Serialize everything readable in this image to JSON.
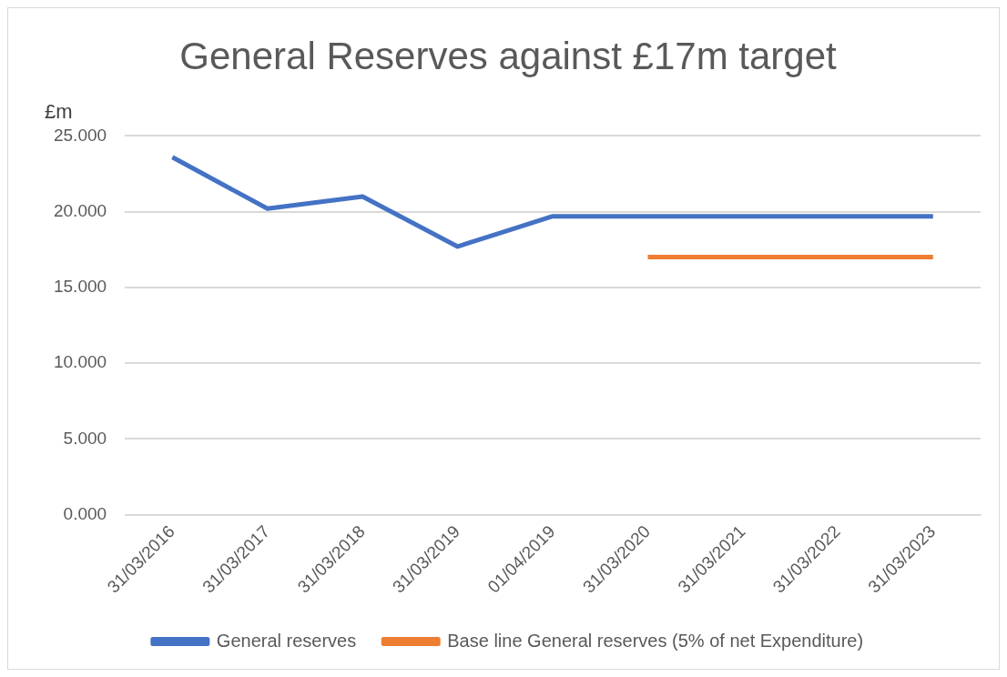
{
  "chart_data": {
    "type": "line",
    "title": "General Reserves against £17m target",
    "ylabel": "£m",
    "categories": [
      "31/03/2016",
      "31/03/2017",
      "31/03/2018",
      "31/03/2019",
      "01/04/2019",
      "31/03/2020",
      "31/03/2021",
      "31/03/2022",
      "31/03/2023"
    ],
    "series": [
      {
        "name": "General reserves",
        "color": "#4472c4",
        "values": [
          23.6,
          20.2,
          21.0,
          17.7,
          19.7,
          19.7,
          19.7,
          19.7,
          19.7
        ]
      },
      {
        "name": "Base line General reserves (5% of net Expenditure)",
        "color": "#ed7d31",
        "values": [
          null,
          null,
          null,
          null,
          null,
          17.0,
          17.0,
          17.0,
          17.0
        ]
      }
    ],
    "ylim": [
      0,
      25
    ],
    "yticks": [
      {
        "value": 0,
        "label": "0.000"
      },
      {
        "value": 5,
        "label": "5.000"
      },
      {
        "value": 10,
        "label": "10.000"
      },
      {
        "value": 15,
        "label": "15.000"
      },
      {
        "value": 20,
        "label": "20.000"
      },
      {
        "value": 25,
        "label": "25.000"
      }
    ],
    "grid": "y",
    "legend": "bottom",
    "marker": "none",
    "line_style": "solid"
  }
}
